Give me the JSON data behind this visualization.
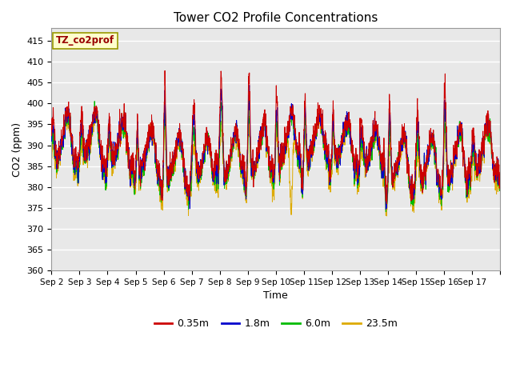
{
  "title": "Tower CO2 Profile Concentrations",
  "xlabel": "Time",
  "ylabel": "CO2 (ppm)",
  "annotation_text": "TZ_co2prof",
  "annotation_bg": "#ffffcc",
  "annotation_border": "#999900",
  "bg_color": "#ffffff",
  "plot_bg_color": "#ffffff",
  "ylim": [
    360,
    418
  ],
  "yticks": [
    360,
    365,
    370,
    375,
    380,
    385,
    390,
    395,
    400,
    405,
    410,
    415
  ],
  "series": {
    "0.35m": {
      "color": "#cc0000"
    },
    "1.8m": {
      "color": "#0000cc"
    },
    "6.0m": {
      "color": "#00bb00"
    },
    "23.5m": {
      "color": "#ddaa00"
    }
  },
  "n_days": 16,
  "points_per_day": 144,
  "seed": 7,
  "xticklabels": [
    "Sep 2",
    "Sep 3",
    "Sep 4",
    "Sep 5",
    "Sep 6",
    "Sep 7",
    "Sep 8",
    "Sep 9",
    "Sep 10",
    "Sep 11",
    "Sep 12",
    "Sep 13",
    "Sep 14",
    "Sep 15",
    "Sep 16",
    "Sep 17"
  ],
  "legend_labels": [
    "0.35m",
    "1.8m",
    "6.0m",
    "23.5m"
  ],
  "legend_colors": [
    "#cc0000",
    "#0000cc",
    "#00bb00",
    "#ddaa00"
  ]
}
